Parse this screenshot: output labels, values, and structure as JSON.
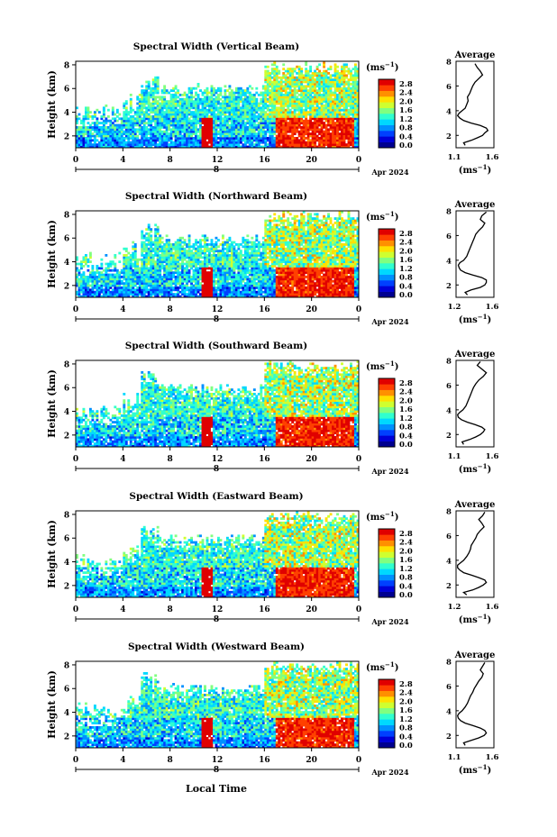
{
  "chart_data": [
    {
      "type": "heatmap",
      "title": "Spectral Width (Vertical Beam)",
      "ylabel": "Height (km)",
      "yticks": [
        "2",
        "4",
        "6",
        "8"
      ],
      "ylim": [
        1,
        8.3
      ],
      "xticks": [
        "0",
        "4",
        "8",
        "12",
        "16",
        "20",
        "0"
      ],
      "xlim": [
        0,
        24
      ],
      "date_tick": "8",
      "date_label": "Apr 2024",
      "colorbar": {
        "label": "(ms",
        "label_sup": "−1",
        "label_end": ")",
        "ticks": [
          "0.0",
          "0.4",
          "0.8",
          "1.2",
          "1.6",
          "2.0",
          "2.4",
          "2.8"
        ]
      },
      "average": {
        "title": "Average",
        "xlabel": "(ms",
        "xlabel_sup": "−1",
        "xlabel_end": ")",
        "xticks": [
          "1.1",
          "1.6"
        ],
        "xlim": [
          1.1,
          1.6
        ],
        "yticks": [
          "2",
          "4",
          "6",
          "8"
        ],
        "ylim": [
          1,
          8
        ],
        "profile": [
          [
            1.22,
            1.2
          ],
          [
            1.2,
            1.4
          ],
          [
            1.3,
            1.6
          ],
          [
            1.38,
            1.8
          ],
          [
            1.45,
            2.0
          ],
          [
            1.48,
            2.2
          ],
          [
            1.52,
            2.4
          ],
          [
            1.5,
            2.6
          ],
          [
            1.42,
            2.8
          ],
          [
            1.3,
            3.0
          ],
          [
            1.2,
            3.2
          ],
          [
            1.15,
            3.4
          ],
          [
            1.12,
            3.6
          ],
          [
            1.14,
            3.8
          ],
          [
            1.18,
            4.0
          ],
          [
            1.22,
            4.2
          ],
          [
            1.24,
            4.5
          ],
          [
            1.26,
            4.8
          ],
          [
            1.25,
            5.1
          ],
          [
            1.28,
            5.4
          ],
          [
            1.3,
            5.7
          ],
          [
            1.32,
            6.0
          ],
          [
            1.35,
            6.3
          ],
          [
            1.4,
            6.6
          ],
          [
            1.45,
            6.9
          ],
          [
            1.42,
            7.2
          ],
          [
            1.38,
            7.5
          ],
          [
            1.35,
            7.8
          ]
        ]
      }
    },
    {
      "type": "heatmap",
      "title": "Spectral Width (Northward Beam)",
      "ylabel": "Height (km)",
      "yticks": [
        "2",
        "4",
        "6",
        "8"
      ],
      "ylim": [
        1,
        8.3
      ],
      "xticks": [
        "0",
        "4",
        "8",
        "12",
        "16",
        "20",
        "0"
      ],
      "xlim": [
        0,
        24
      ],
      "date_tick": "8",
      "date_label": "Apr 2024",
      "colorbar": {
        "label": "(ms",
        "label_sup": "−1",
        "label_end": ")",
        "ticks": [
          "0.0",
          "0.4",
          "0.8",
          "1.2",
          "1.6",
          "2.0",
          "2.4",
          "2.8"
        ]
      },
      "average": {
        "title": "Average",
        "xlabel": "(ms",
        "xlabel_sup": "−1",
        "xlabel_end": ")",
        "xticks": [
          "1.2",
          "1.6"
        ],
        "xlim": [
          1.1,
          1.6
        ],
        "yticks": [
          "2",
          "4",
          "6",
          "8"
        ],
        "ylim": [
          1,
          8
        ],
        "profile": [
          [
            1.25,
            1.2
          ],
          [
            1.22,
            1.4
          ],
          [
            1.3,
            1.6
          ],
          [
            1.42,
            1.8
          ],
          [
            1.48,
            2.0
          ],
          [
            1.5,
            2.2
          ],
          [
            1.5,
            2.4
          ],
          [
            1.44,
            2.6
          ],
          [
            1.32,
            2.8
          ],
          [
            1.22,
            3.0
          ],
          [
            1.16,
            3.2
          ],
          [
            1.14,
            3.4
          ],
          [
            1.13,
            3.6
          ],
          [
            1.15,
            3.8
          ],
          [
            1.2,
            4.0
          ],
          [
            1.24,
            4.3
          ],
          [
            1.26,
            4.6
          ],
          [
            1.28,
            4.9
          ],
          [
            1.3,
            5.2
          ],
          [
            1.32,
            5.5
          ],
          [
            1.34,
            5.8
          ],
          [
            1.36,
            6.1
          ],
          [
            1.4,
            6.4
          ],
          [
            1.45,
            6.7
          ],
          [
            1.48,
            7.0
          ],
          [
            1.42,
            7.3
          ],
          [
            1.44,
            7.6
          ],
          [
            1.5,
            7.9
          ]
        ]
      }
    },
    {
      "type": "heatmap",
      "title": "Spectral Width (Southward Beam)",
      "ylabel": "Height (km)",
      "yticks": [
        "2",
        "4",
        "6",
        "8"
      ],
      "ylim": [
        1,
        8.3
      ],
      "xticks": [
        "0",
        "4",
        "8",
        "12",
        "16",
        "20",
        "0"
      ],
      "xlim": [
        0,
        24
      ],
      "date_tick": "8",
      "date_label": "Apr 2024",
      "colorbar": {
        "label": "(ms",
        "label_sup": "−1",
        "label_end": ")",
        "ticks": [
          "0.0",
          "0.4",
          "0.8",
          "1.2",
          "1.6",
          "2.0",
          "2.4",
          "2.8"
        ]
      },
      "average": {
        "title": "Average",
        "xlabel": "(ms",
        "xlabel_sup": "−1",
        "xlabel_end": ")",
        "xticks": [
          "1.1",
          "1.6"
        ],
        "xlim": [
          1.1,
          1.6
        ],
        "yticks": [
          "2",
          "4",
          "6",
          "8"
        ],
        "ylim": [
          1,
          8
        ],
        "profile": [
          [
            1.2,
            1.2
          ],
          [
            1.18,
            1.4
          ],
          [
            1.28,
            1.6
          ],
          [
            1.36,
            1.8
          ],
          [
            1.42,
            2.0
          ],
          [
            1.46,
            2.2
          ],
          [
            1.48,
            2.4
          ],
          [
            1.44,
            2.6
          ],
          [
            1.35,
            2.8
          ],
          [
            1.25,
            3.0
          ],
          [
            1.17,
            3.2
          ],
          [
            1.13,
            3.4
          ],
          [
            1.12,
            3.6
          ],
          [
            1.15,
            3.8
          ],
          [
            1.19,
            4.0
          ],
          [
            1.23,
            4.3
          ],
          [
            1.25,
            4.6
          ],
          [
            1.27,
            4.9
          ],
          [
            1.29,
            5.2
          ],
          [
            1.31,
            5.5
          ],
          [
            1.33,
            5.8
          ],
          [
            1.36,
            6.1
          ],
          [
            1.4,
            6.4
          ],
          [
            1.46,
            6.7
          ],
          [
            1.5,
            7.0
          ],
          [
            1.44,
            7.3
          ],
          [
            1.38,
            7.6
          ],
          [
            1.42,
            7.9
          ]
        ]
      }
    },
    {
      "type": "heatmap",
      "title": "Spectral Width (Eastward Beam)",
      "ylabel": "Height (km)",
      "yticks": [
        "2",
        "4",
        "6",
        "8"
      ],
      "ylim": [
        1,
        8.3
      ],
      "xticks": [
        "0",
        "4",
        "8",
        "12",
        "16",
        "20",
        "0"
      ],
      "xlim": [
        0,
        24
      ],
      "date_tick": "8",
      "date_label": "Apr 2024",
      "colorbar": {
        "label": "(ms",
        "label_sup": "−1",
        "label_end": ")",
        "ticks": [
          "0.0",
          "0.4",
          "0.8",
          "1.2",
          "1.6",
          "2.0",
          "2.4",
          "2.8"
        ]
      },
      "average": {
        "title": "Average",
        "xlabel": "(ms",
        "xlabel_sup": "−1",
        "xlabel_end": ")",
        "xticks": [
          "1.2",
          "1.6"
        ],
        "xlim": [
          1.1,
          1.6
        ],
        "yticks": [
          "2",
          "4",
          "6",
          "8"
        ],
        "ylim": [
          1,
          8
        ],
        "profile": [
          [
            1.24,
            1.2
          ],
          [
            1.2,
            1.4
          ],
          [
            1.32,
            1.6
          ],
          [
            1.4,
            1.8
          ],
          [
            1.46,
            2.0
          ],
          [
            1.5,
            2.2
          ],
          [
            1.48,
            2.4
          ],
          [
            1.4,
            2.6
          ],
          [
            1.3,
            2.8
          ],
          [
            1.2,
            3.0
          ],
          [
            1.15,
            3.2
          ],
          [
            1.12,
            3.4
          ],
          [
            1.12,
            3.6
          ],
          [
            1.16,
            3.8
          ],
          [
            1.2,
            4.0
          ],
          [
            1.24,
            4.3
          ],
          [
            1.27,
            4.6
          ],
          [
            1.29,
            4.9
          ],
          [
            1.3,
            5.2
          ],
          [
            1.33,
            5.5
          ],
          [
            1.36,
            5.8
          ],
          [
            1.38,
            6.1
          ],
          [
            1.42,
            6.4
          ],
          [
            1.47,
            6.7
          ],
          [
            1.44,
            7.0
          ],
          [
            1.4,
            7.3
          ],
          [
            1.45,
            7.6
          ],
          [
            1.48,
            7.9
          ]
        ]
      }
    },
    {
      "type": "heatmap",
      "title": "Spectral Width (Westward Beam)",
      "ylabel": "Height (km)",
      "yticks": [
        "2",
        "4",
        "6",
        "8"
      ],
      "ylim": [
        1,
        8.3
      ],
      "xticks": [
        "0",
        "4",
        "8",
        "12",
        "16",
        "20",
        "0"
      ],
      "xlim": [
        0,
        24
      ],
      "date_tick": "8",
      "date_label": "Apr 2024",
      "colorbar": {
        "label": "(ms",
        "label_sup": "−1",
        "label_end": ")",
        "ticks": [
          "0.0",
          "0.4",
          "0.8",
          "1.2",
          "1.6",
          "2.0",
          "2.4",
          "2.8"
        ]
      },
      "average": {
        "title": "Average",
        "xlabel": "(ms",
        "xlabel_sup": "−1",
        "xlabel_end": ")",
        "xticks": [
          "1.1",
          "1.6"
        ],
        "xlim": [
          1.1,
          1.6
        ],
        "yticks": [
          "2",
          "4",
          "6",
          "8"
        ],
        "ylim": [
          1,
          8
        ],
        "profile": [
          [
            1.22,
            1.2
          ],
          [
            1.2,
            1.4
          ],
          [
            1.3,
            1.6
          ],
          [
            1.4,
            1.8
          ],
          [
            1.47,
            2.0
          ],
          [
            1.5,
            2.2
          ],
          [
            1.48,
            2.4
          ],
          [
            1.42,
            2.6
          ],
          [
            1.32,
            2.8
          ],
          [
            1.22,
            3.0
          ],
          [
            1.16,
            3.2
          ],
          [
            1.13,
            3.4
          ],
          [
            1.12,
            3.6
          ],
          [
            1.14,
            3.8
          ],
          [
            1.18,
            4.0
          ],
          [
            1.22,
            4.3
          ],
          [
            1.25,
            4.6
          ],
          [
            1.27,
            4.9
          ],
          [
            1.29,
            5.2
          ],
          [
            1.32,
            5.5
          ],
          [
            1.34,
            5.8
          ],
          [
            1.37,
            6.1
          ],
          [
            1.4,
            6.4
          ],
          [
            1.44,
            6.7
          ],
          [
            1.46,
            7.0
          ],
          [
            1.42,
            7.3
          ],
          [
            1.45,
            7.6
          ],
          [
            1.48,
            7.9
          ]
        ]
      }
    }
  ],
  "x_axis_label": "Local Time",
  "colormap": [
    "#000090",
    "#0000d8",
    "#0040ff",
    "#0090ff",
    "#00d8ff",
    "#30ffcf",
    "#80ff80",
    "#cfff30",
    "#ffe000",
    "#ff9000",
    "#ff4000",
    "#e00000"
  ]
}
